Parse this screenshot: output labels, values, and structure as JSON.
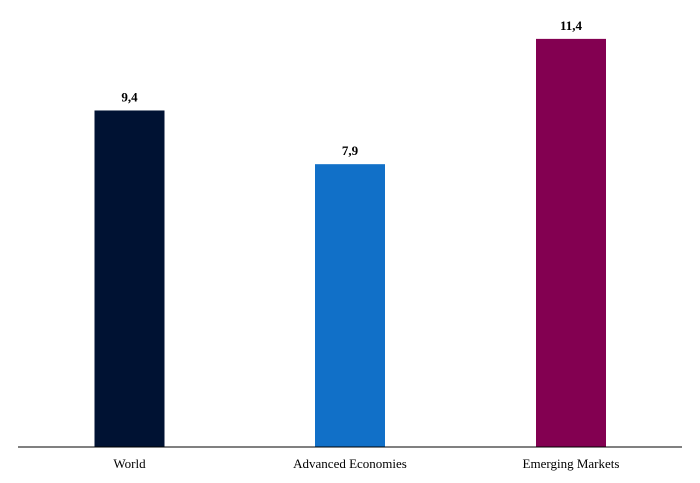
{
  "chart_data": {
    "type": "bar",
    "title": "",
    "xlabel": "",
    "ylabel": "",
    "categories": [
      "World",
      "Advanced Economies",
      "Emerging Markets"
    ],
    "values": [
      9.4,
      7.9,
      11.4
    ],
    "value_labels": [
      "9,4",
      "7,9",
      "11,4"
    ],
    "colors": [
      "#001233",
      "#1170c8",
      "#830051"
    ],
    "ylim": [
      0,
      12
    ],
    "grid": false,
    "legend": "none"
  }
}
